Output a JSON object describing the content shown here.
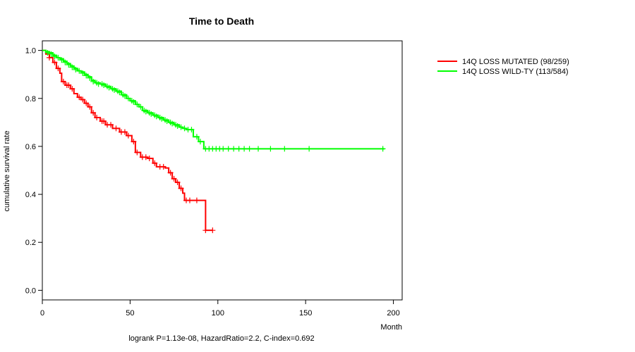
{
  "chart_data": {
    "type": "line",
    "subtype": "kaplan-meier survival curve",
    "title": "Time to Death",
    "xlabel": "Month",
    "ylabel": "cumulative survival rate",
    "footer": "logrank P=1.13e-08, HazardRatio=2.2, C-index=0.692",
    "xlim": [
      0,
      205
    ],
    "ylim": [
      -0.04,
      1.04
    ],
    "xticks": [
      0,
      50,
      100,
      150,
      200
    ],
    "yticks": [
      0.0,
      0.2,
      0.4,
      0.6,
      0.8,
      1.0
    ],
    "ytick_labels": [
      "0.0",
      "0.2",
      "0.4",
      "0.6",
      "0.8",
      "1.0"
    ],
    "legend_position": "top-right outside plot",
    "series": [
      {
        "name": "14Q LOSS MUTATED (98/259)",
        "color": "#ff0000",
        "steps": [
          [
            0,
            1.0
          ],
          [
            2,
            0.985
          ],
          [
            4,
            0.97
          ],
          [
            6,
            0.95
          ],
          [
            8,
            0.925
          ],
          [
            10,
            0.905
          ],
          [
            11,
            0.87
          ],
          [
            13,
            0.855
          ],
          [
            16,
            0.84
          ],
          [
            18,
            0.82
          ],
          [
            20,
            0.805
          ],
          [
            22,
            0.795
          ],
          [
            24,
            0.78
          ],
          [
            26,
            0.765
          ],
          [
            28,
            0.74
          ],
          [
            30,
            0.72
          ],
          [
            33,
            0.705
          ],
          [
            36,
            0.69
          ],
          [
            40,
            0.675
          ],
          [
            44,
            0.66
          ],
          [
            48,
            0.645
          ],
          [
            51,
            0.62
          ],
          [
            53,
            0.575
          ],
          [
            56,
            0.555
          ],
          [
            60,
            0.55
          ],
          [
            63,
            0.53
          ],
          [
            65,
            0.515
          ],
          [
            70,
            0.51
          ],
          [
            72,
            0.49
          ],
          [
            74,
            0.465
          ],
          [
            76,
            0.45
          ],
          [
            78,
            0.425
          ],
          [
            80,
            0.405
          ],
          [
            81,
            0.375
          ],
          [
            90,
            0.375
          ],
          [
            93,
            0.25
          ],
          [
            97,
            0.25
          ]
        ],
        "censored": [
          [
            4,
            0.97
          ],
          [
            7,
            0.95
          ],
          [
            9,
            0.925
          ],
          [
            12,
            0.87
          ],
          [
            14,
            0.855
          ],
          [
            15,
            0.855
          ],
          [
            17,
            0.84
          ],
          [
            21,
            0.805
          ],
          [
            23,
            0.795
          ],
          [
            25,
            0.78
          ],
          [
            27,
            0.765
          ],
          [
            29,
            0.74
          ],
          [
            31,
            0.72
          ],
          [
            34,
            0.705
          ],
          [
            35,
            0.705
          ],
          [
            37,
            0.69
          ],
          [
            39,
            0.69
          ],
          [
            42,
            0.675
          ],
          [
            45,
            0.66
          ],
          [
            47,
            0.66
          ],
          [
            49,
            0.645
          ],
          [
            52,
            0.62
          ],
          [
            54,
            0.575
          ],
          [
            57,
            0.555
          ],
          [
            59,
            0.555
          ],
          [
            61,
            0.55
          ],
          [
            64,
            0.53
          ],
          [
            67,
            0.515
          ],
          [
            69,
            0.515
          ],
          [
            73,
            0.49
          ],
          [
            75,
            0.465
          ],
          [
            77,
            0.45
          ],
          [
            79,
            0.425
          ],
          [
            82,
            0.375
          ],
          [
            84,
            0.375
          ],
          [
            88,
            0.375
          ],
          [
            93,
            0.25
          ],
          [
            97,
            0.25
          ]
        ]
      },
      {
        "name": "14Q LOSS WILD-TY (113/584)",
        "color": "#00ff00",
        "steps": [
          [
            0,
            1.0
          ],
          [
            2,
            0.995
          ],
          [
            4,
            0.99
          ],
          [
            6,
            0.98
          ],
          [
            8,
            0.97
          ],
          [
            10,
            0.965
          ],
          [
            12,
            0.955
          ],
          [
            14,
            0.945
          ],
          [
            16,
            0.935
          ],
          [
            18,
            0.925
          ],
          [
            20,
            0.915
          ],
          [
            22,
            0.91
          ],
          [
            24,
            0.9
          ],
          [
            26,
            0.89
          ],
          [
            28,
            0.875
          ],
          [
            30,
            0.865
          ],
          [
            33,
            0.86
          ],
          [
            36,
            0.85
          ],
          [
            39,
            0.84
          ],
          [
            42,
            0.83
          ],
          [
            45,
            0.815
          ],
          [
            48,
            0.8
          ],
          [
            50,
            0.79
          ],
          [
            53,
            0.775
          ],
          [
            55,
            0.765
          ],
          [
            57,
            0.75
          ],
          [
            60,
            0.74
          ],
          [
            63,
            0.73
          ],
          [
            66,
            0.72
          ],
          [
            69,
            0.71
          ],
          [
            72,
            0.7
          ],
          [
            75,
            0.69
          ],
          [
            78,
            0.68
          ],
          [
            80,
            0.675
          ],
          [
            82,
            0.67
          ],
          [
            86,
            0.64
          ],
          [
            89,
            0.62
          ],
          [
            92,
            0.59
          ],
          [
            195,
            0.59
          ]
        ],
        "censored": [
          [
            3,
            0.99
          ],
          [
            5,
            0.985
          ],
          [
            7,
            0.975
          ],
          [
            9,
            0.97
          ],
          [
            11,
            0.96
          ],
          [
            13,
            0.95
          ],
          [
            15,
            0.94
          ],
          [
            17,
            0.93
          ],
          [
            19,
            0.92
          ],
          [
            21,
            0.915
          ],
          [
            23,
            0.905
          ],
          [
            25,
            0.895
          ],
          [
            27,
            0.885
          ],
          [
            29,
            0.87
          ],
          [
            31,
            0.865
          ],
          [
            32,
            0.86
          ],
          [
            34,
            0.86
          ],
          [
            35,
            0.855
          ],
          [
            37,
            0.85
          ],
          [
            38,
            0.845
          ],
          [
            40,
            0.84
          ],
          [
            41,
            0.835
          ],
          [
            43,
            0.83
          ],
          [
            44,
            0.825
          ],
          [
            46,
            0.815
          ],
          [
            47,
            0.81
          ],
          [
            49,
            0.8
          ],
          [
            51,
            0.79
          ],
          [
            52,
            0.785
          ],
          [
            54,
            0.775
          ],
          [
            56,
            0.765
          ],
          [
            58,
            0.75
          ],
          [
            59,
            0.745
          ],
          [
            61,
            0.74
          ],
          [
            62,
            0.735
          ],
          [
            64,
            0.73
          ],
          [
            65,
            0.725
          ],
          [
            67,
            0.72
          ],
          [
            68,
            0.715
          ],
          [
            70,
            0.71
          ],
          [
            71,
            0.705
          ],
          [
            73,
            0.7
          ],
          [
            74,
            0.695
          ],
          [
            76,
            0.69
          ],
          [
            77,
            0.685
          ],
          [
            79,
            0.68
          ],
          [
            81,
            0.675
          ],
          [
            83,
            0.67
          ],
          [
            85,
            0.67
          ],
          [
            88,
            0.64
          ],
          [
            90,
            0.62
          ],
          [
            93,
            0.59
          ],
          [
            95,
            0.59
          ],
          [
            97,
            0.59
          ],
          [
            99,
            0.59
          ],
          [
            101,
            0.59
          ],
          [
            103,
            0.59
          ],
          [
            106,
            0.59
          ],
          [
            109,
            0.59
          ],
          [
            112,
            0.59
          ],
          [
            115,
            0.59
          ],
          [
            118,
            0.59
          ],
          [
            123,
            0.59
          ],
          [
            130,
            0.59
          ],
          [
            138,
            0.59
          ],
          [
            152,
            0.59
          ],
          [
            194,
            0.59
          ]
        ]
      }
    ]
  }
}
